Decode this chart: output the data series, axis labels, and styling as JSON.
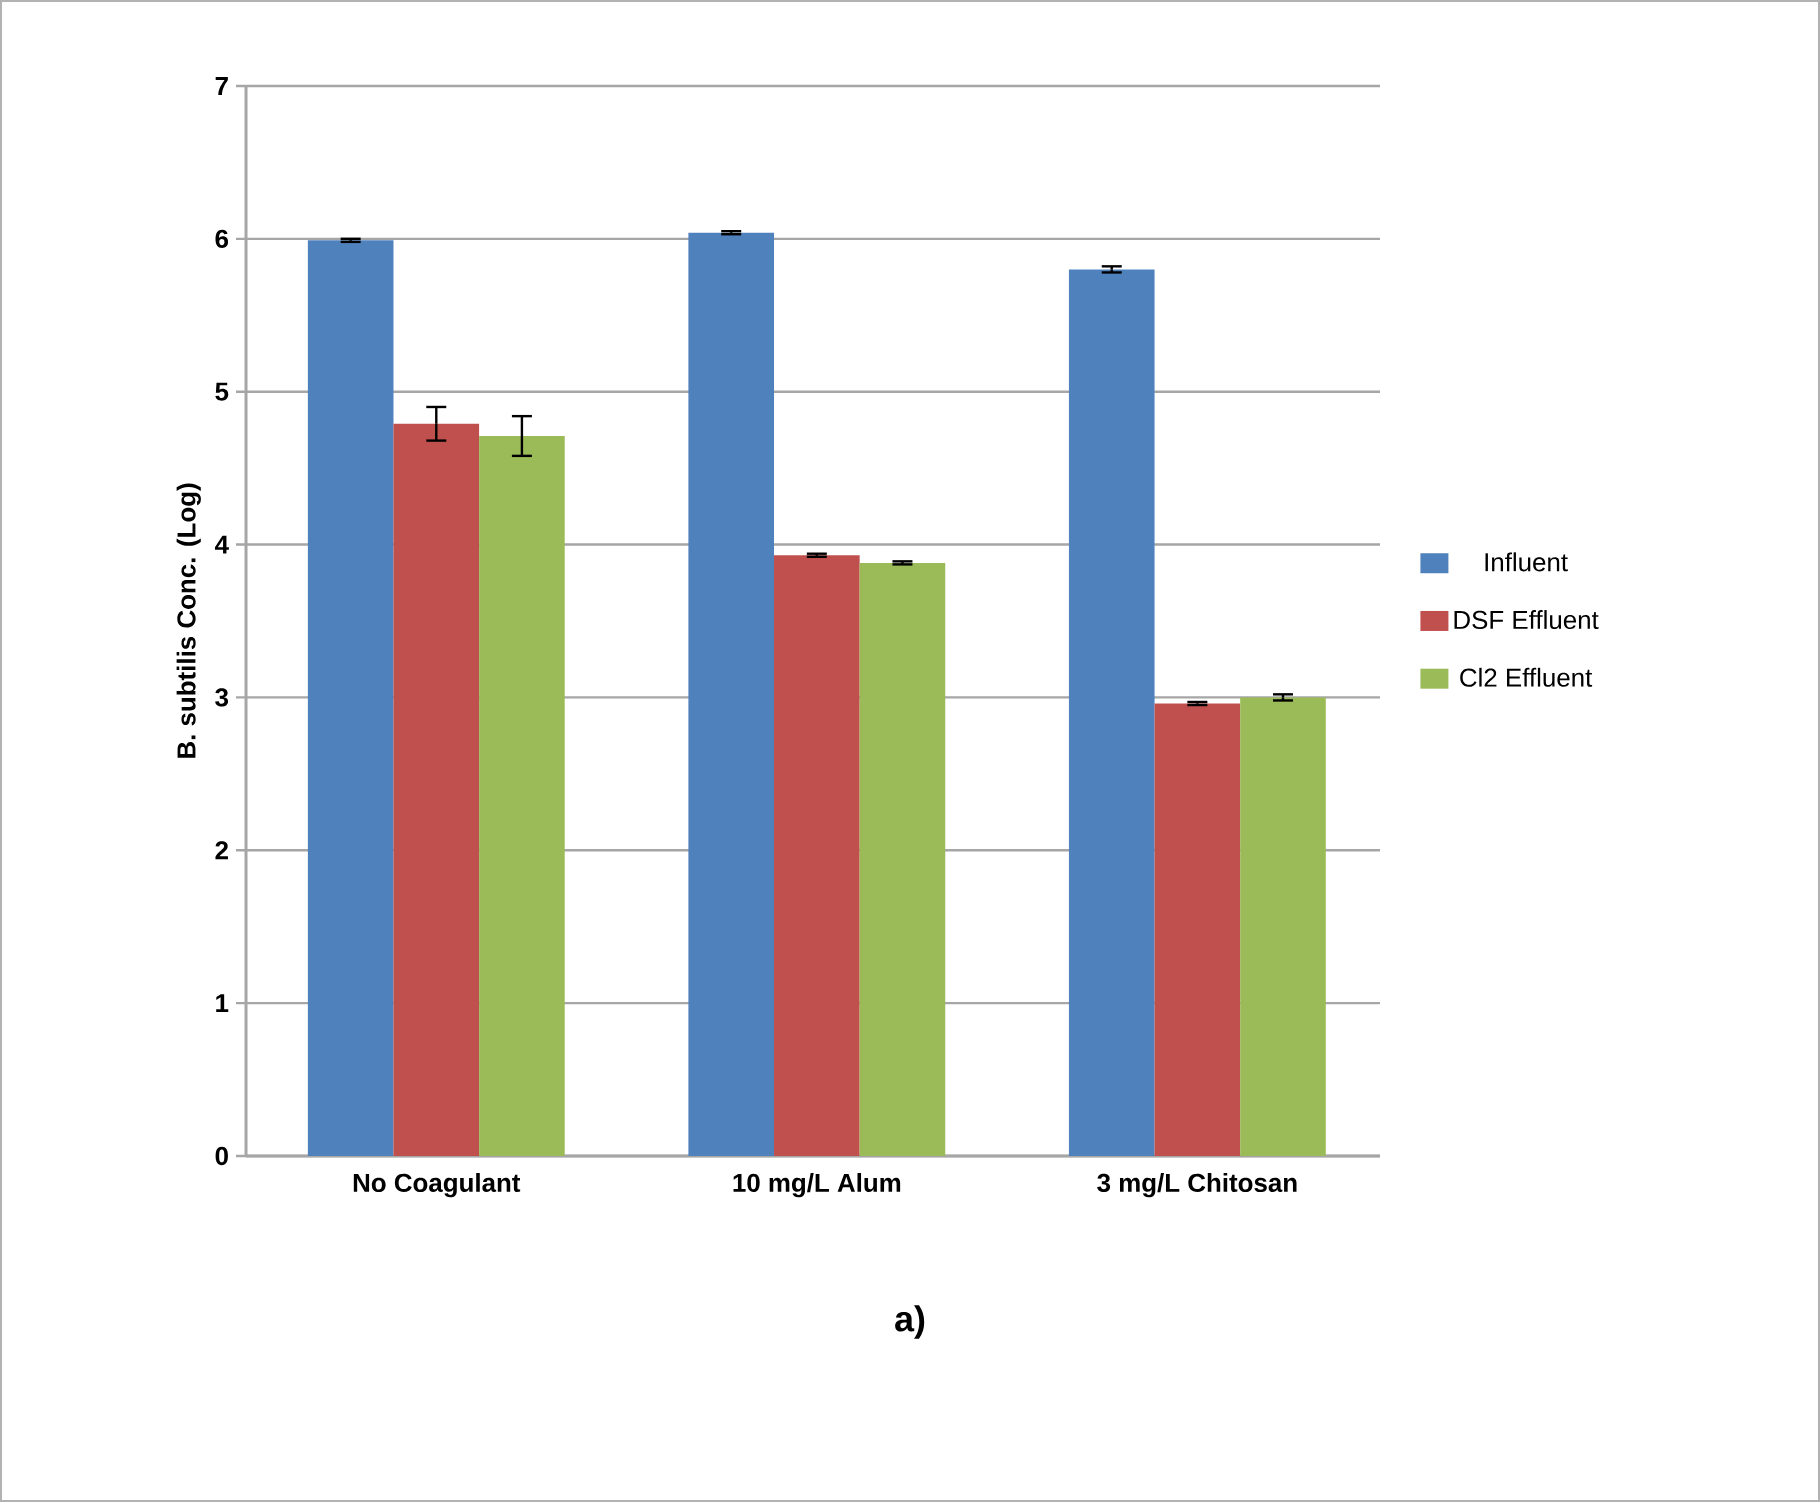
{
  "chart_data": {
    "type": "bar",
    "ylabel": "B. subtilis Conc. (Log)",
    "categories": [
      "No Coagulant",
      "10 mg/L Alum",
      "3 mg/L Chitosan"
    ],
    "series": [
      {
        "name": "Influent",
        "color": "#4f81bd",
        "values": [
          5.99,
          6.04,
          5.8
        ],
        "errors": [
          0.01,
          0.01,
          0.02
        ]
      },
      {
        "name": "DSF Effluent",
        "color": "#c0504d",
        "values": [
          4.79,
          3.93,
          2.96
        ],
        "errors": [
          0.11,
          0.01,
          0.01
        ]
      },
      {
        "name": "Cl2 Effluent",
        "color": "#9bbb59",
        "values": [
          4.71,
          3.88,
          3.0
        ],
        "errors": [
          0.13,
          0.01,
          0.02
        ]
      }
    ],
    "ylim": [
      0,
      7
    ],
    "yticks": [
      0,
      1,
      2,
      3,
      4,
      5,
      6,
      7
    ],
    "grid": "y",
    "legend": "right",
    "annotations": [
      "a)"
    ]
  }
}
